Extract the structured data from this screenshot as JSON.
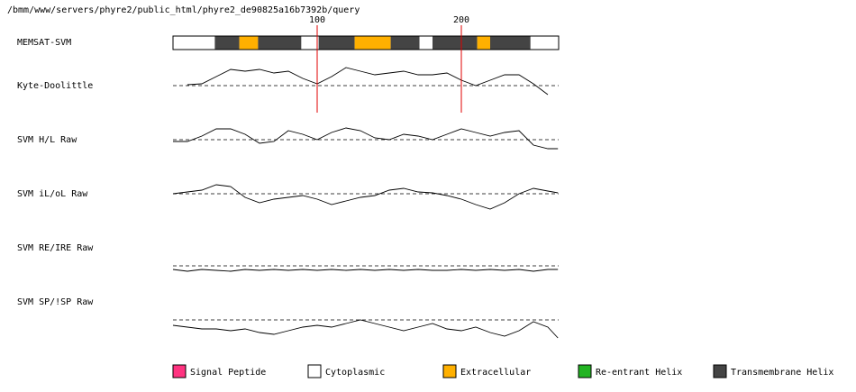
{
  "chart_data": {
    "type": "memsat",
    "path": "/bmm/www/servers/phyre2/public_html/phyre2_de90825a16b7392b/query",
    "xlim": [
      0,
      267.5
    ],
    "xticks": [
      100,
      200
    ],
    "topology_label": "MEMSAT-SVM",
    "segments": [
      {
        "start": 0,
        "end": 29,
        "color": "#ffffff"
      },
      {
        "start": 29,
        "end": 46,
        "color": "#444444"
      },
      {
        "start": 46,
        "end": 59,
        "color": "#ffb000"
      },
      {
        "start": 59,
        "end": 89,
        "color": "#444444"
      },
      {
        "start": 89,
        "end": 101,
        "color": "#ffffff"
      },
      {
        "start": 101,
        "end": 126,
        "color": "#444444"
      },
      {
        "start": 126,
        "end": 151,
        "color": "#ffb000"
      },
      {
        "start": 151,
        "end": 171,
        "color": "#444444"
      },
      {
        "start": 171,
        "end": 180,
        "color": "#ffffff"
      },
      {
        "start": 180,
        "end": 211,
        "color": "#444444"
      },
      {
        "start": 211,
        "end": 220,
        "color": "#ffb000"
      },
      {
        "start": 220,
        "end": 248,
        "color": "#444444"
      },
      {
        "start": 248,
        "end": 267.5,
        "color": "#ffffff"
      }
    ],
    "x": [
      0,
      10,
      20,
      30,
      40,
      50,
      60,
      70,
      80,
      90,
      100,
      110,
      120,
      130,
      140,
      150,
      160,
      170,
      180,
      190,
      200,
      210,
      220,
      230,
      240,
      250,
      260,
      267
    ],
    "ylim": [
      -1.5,
      1.5
    ],
    "series": [
      {
        "name": "Kyte-Doolittle",
        "values": [
          null,
          0.05,
          0.1,
          0.5,
          0.9,
          0.8,
          0.9,
          0.7,
          0.8,
          0.4,
          0.1,
          0.5,
          1.0,
          0.8,
          0.6,
          0.7,
          0.8,
          0.6,
          0.6,
          0.7,
          0.3,
          0,
          0.3,
          0.6,
          0.6,
          0.1,
          -0.5,
          null
        ]
      },
      {
        "name": "SVM H/L Raw",
        "values": [
          -0.1,
          -0.1,
          0.2,
          0.6,
          0.6,
          0.3,
          -0.2,
          -0.1,
          0.5,
          0.3,
          0,
          0.4,
          0.65,
          0.5,
          0.1,
          0,
          0.3,
          0.2,
          0,
          0.3,
          0.6,
          0.4,
          0.2,
          0.4,
          0.5,
          -0.3,
          -0.5,
          -0.5
        ]
      },
      {
        "name": "SVM iL/oL Raw",
        "values": [
          0,
          0.1,
          0.2,
          0.5,
          0.4,
          -0.2,
          -0.5,
          -0.3,
          -0.2,
          -0.1,
          -0.3,
          -0.6,
          -0.4,
          -0.2,
          -0.1,
          0.2,
          0.3,
          0.1,
          0.05,
          -0.1,
          -0.3,
          -0.6,
          -0.85,
          -0.5,
          0,
          0.3,
          0.15,
          0.05
        ]
      },
      {
        "name": "SVM RE/IRE Raw",
        "values": [
          -0.2,
          -0.3,
          -0.2,
          -0.25,
          -0.3,
          -0.2,
          -0.25,
          -0.2,
          -0.25,
          -0.2,
          -0.25,
          -0.2,
          -0.25,
          -0.2,
          -0.25,
          -0.2,
          -0.25,
          -0.2,
          -0.25,
          -0.25,
          -0.2,
          -0.25,
          -0.2,
          -0.25,
          -0.2,
          -0.3,
          -0.2,
          -0.2
        ]
      },
      {
        "name": "SVM SP/!SP Raw",
        "values": [
          -0.3,
          -0.4,
          -0.5,
          -0.5,
          -0.6,
          -0.5,
          -0.7,
          -0.8,
          -0.6,
          -0.4,
          -0.3,
          -0.4,
          -0.2,
          0,
          -0.2,
          -0.4,
          -0.6,
          -0.4,
          -0.2,
          -0.5,
          -0.6,
          -0.4,
          -0.7,
          -0.9,
          -0.6,
          -0.1,
          -0.4,
          -1.0
        ]
      }
    ],
    "legend": [
      {
        "label": "Signal Peptide",
        "color": "#ff3380"
      },
      {
        "label": "Cytoplasmic",
        "color": "#ffffff"
      },
      {
        "label": "Extracellular",
        "color": "#ffb000"
      },
      {
        "label": "Re-entrant Helix",
        "color": "#22b422"
      },
      {
        "label": "Transmembrane Helix",
        "color": "#444444"
      }
    ]
  }
}
